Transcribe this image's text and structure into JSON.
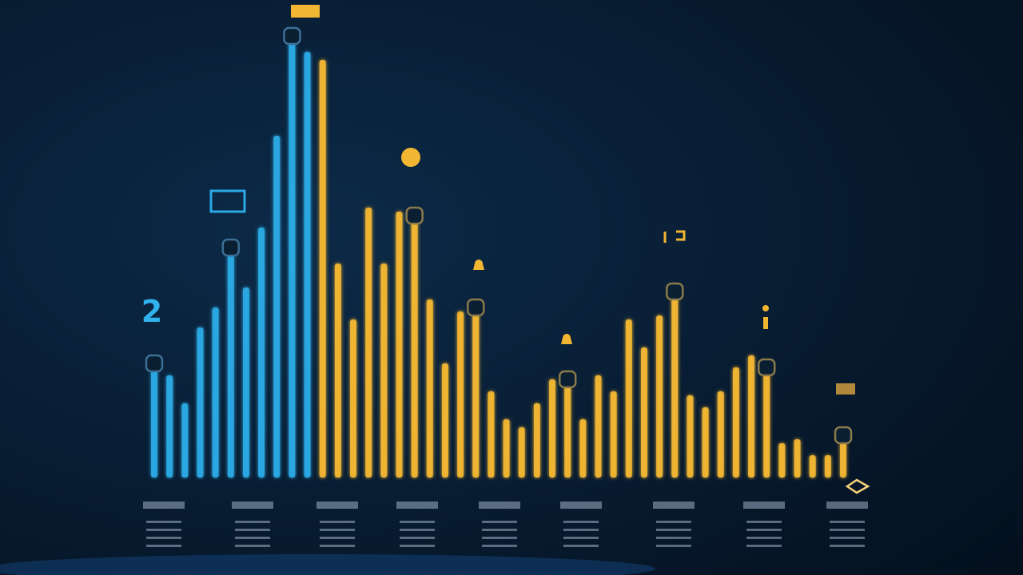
{
  "chart_data": {
    "type": "bar",
    "annotation": "2",
    "values": [
      143,
      128,
      93,
      188,
      213,
      288,
      238,
      313,
      428,
      553,
      533,
      523,
      268,
      198,
      338,
      268,
      333,
      328,
      223,
      143,
      208,
      213,
      108,
      73,
      63,
      93,
      123,
      123,
      73,
      128,
      108,
      198,
      163,
      203,
      233,
      103,
      88,
      108,
      138,
      153,
      138,
      43,
      48,
      28,
      28,
      53
    ],
    "colors": [
      "#2aa9e4",
      "#2aa9e4",
      "#2aa9e4",
      "#2aa9e4",
      "#2aa9e4",
      "#2aa9e4",
      "#2aa9e4",
      "#2aa9e4",
      "#2aa9e4",
      "#2aa9e4",
      "#2aa9e4",
      "#f2b632",
      "#f2b632",
      "#f2b632",
      "#f2b632",
      "#f2b632",
      "#f2b632",
      "#f2b632",
      "#f2b632",
      "#f2b632",
      "#f2b632",
      "#f2b632",
      "#f2b632",
      "#f2b632",
      "#f2b632",
      "#f2b632",
      "#f2b632",
      "#f2b632",
      "#f2b632",
      "#f2b632",
      "#f2b632",
      "#f2b632",
      "#f2b632",
      "#f2b632",
      "#f2b632",
      "#f2b632",
      "#f2b632",
      "#f2b632",
      "#f2b632",
      "#f2b632",
      "#f2b632",
      "#f2b632",
      "#f2b632",
      "#f2b632",
      "#f2b632",
      "#f2b632"
    ],
    "ylim": [
      0,
      560
    ]
  }
}
